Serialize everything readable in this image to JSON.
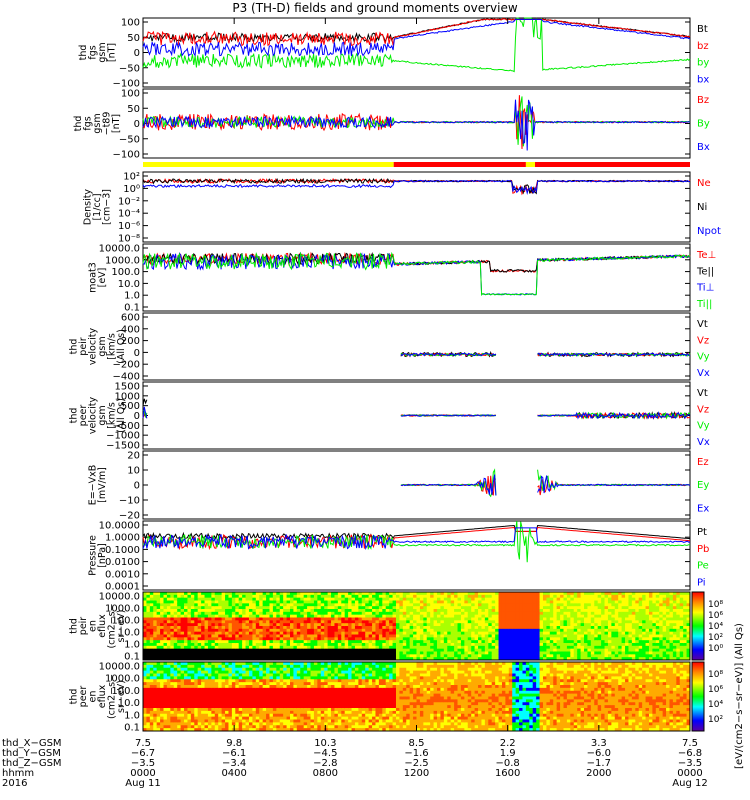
{
  "title": "P3 (TH-D) fields and ground moments overview",
  "colors": {
    "black": "#000000",
    "red": "#ff0000",
    "green": "#00ee00",
    "blue": "#0000ff",
    "yellow": "#ffff00",
    "bar_red": "#ff0000"
  },
  "chart_data": [
    {
      "type": "line",
      "id": "fgs_mag",
      "ylabel": [
        "thd",
        "fgs",
        "gsm",
        "[nT]"
      ],
      "yticks": [
        "100",
        "50",
        "0",
        "−50",
        "−100"
      ],
      "yrange": [
        -100,
        100
      ],
      "series": [
        {
          "name": "Bt",
          "color": "#000000"
        },
        {
          "name": "bz",
          "color": "#ff0000"
        },
        {
          "name": "by",
          "color": "#00ee00"
        },
        {
          "name": "bx",
          "color": "#0000ff"
        }
      ]
    },
    {
      "type": "line",
      "id": "fgs_dc",
      "ylabel": [
        "thd",
        "fgs",
        "gsm",
        "−t89",
        "[nT]"
      ],
      "yticks": [
        "100",
        "50",
        "0",
        "−50",
        "−100"
      ],
      "yrange": [
        -120,
        100
      ],
      "series": [
        {
          "name": "Bz",
          "color": "#ff0000"
        },
        {
          "name": "By",
          "color": "#00ee00"
        },
        {
          "name": "Bx",
          "color": "#0000ff"
        }
      ]
    },
    {
      "type": "line",
      "id": "density",
      "ylabel": [
        "Density",
        "[1/cc]",
        "[cm−3]"
      ],
      "yticks": [
        "10²",
        "10⁰",
        "10⁻²",
        "10⁻⁴",
        "10⁻⁶",
        "10⁻⁸"
      ],
      "yrange_log": [
        -9,
        2.5
      ],
      "series": [
        {
          "name": "Ne",
          "color": "#ff0000"
        },
        {
          "name": "Ni",
          "color": "#000000"
        },
        {
          "name": "Npot",
          "color": "#0000ff"
        }
      ]
    },
    {
      "type": "line",
      "id": "temperature",
      "ylabel": [
        "moat3",
        "[eV]"
      ],
      "yticks": [
        "10000.0",
        "1000.0",
        "100.0",
        "10.0",
        "1.0",
        "0.1"
      ],
      "yrange_log": [
        -1,
        4
      ],
      "series": [
        {
          "name": "Te⊥",
          "color": "#ff0000"
        },
        {
          "name": "Te||",
          "color": "#000000"
        },
        {
          "name": "Ti⊥",
          "color": "#0000ff"
        },
        {
          "name": "Ti||",
          "color": "#00ee00"
        }
      ]
    },
    {
      "type": "line",
      "id": "peir_velocity",
      "ylabel": [
        "thd",
        "peir",
        "velocity",
        "gsm",
        "[km/s",
        "(All Qs)"
      ],
      "yticks": [
        "600",
        "400",
        "200",
        "0",
        "−200",
        "−400"
      ],
      "yrange": [
        -400,
        600
      ],
      "series": [
        {
          "name": "Vt",
          "color": "#000000"
        },
        {
          "name": "Vz",
          "color": "#ff0000"
        },
        {
          "name": "Vy",
          "color": "#00ee00"
        },
        {
          "name": "Vx",
          "color": "#0000ff"
        }
      ]
    },
    {
      "type": "line",
      "id": "peer_velocity",
      "ylabel": [
        "thd",
        "peer",
        "velocity",
        "gsm",
        "[km/s",
        "(All Qs)"
      ],
      "yticks": [
        "1500",
        "1000",
        "500",
        "0",
        "−500",
        "−1000",
        "−1500"
      ],
      "yrange": [
        -1500,
        1500
      ],
      "series": [
        {
          "name": "Vt",
          "color": "#000000"
        },
        {
          "name": "Vz",
          "color": "#ff0000"
        },
        {
          "name": "Vy",
          "color": "#00ee00"
        },
        {
          "name": "Vx",
          "color": "#0000ff"
        }
      ]
    },
    {
      "type": "line",
      "id": "efield",
      "ylabel": [
        "E=−VxB",
        "[mV/m]"
      ],
      "yticks": [
        "20",
        "10",
        "0",
        "−10",
        "−20"
      ],
      "yrange": [
        -20,
        20
      ],
      "series": [
        {
          "name": "Ez",
          "color": "#ff0000"
        },
        {
          "name": "Ey",
          "color": "#00ee00"
        },
        {
          "name": "Ex",
          "color": "#0000ff"
        }
      ]
    },
    {
      "type": "line",
      "id": "pressure",
      "ylabel": [
        "Pressure",
        "[nPa]"
      ],
      "yticks": [
        "10.0000",
        "1.0000",
        "0.1000",
        "0.0100",
        "0.0010",
        "0.0001"
      ],
      "yrange_log": [
        -4.5,
        1.2
      ],
      "series": [
        {
          "name": "Pt",
          "color": "#000000"
        },
        {
          "name": "Pb",
          "color": "#ff0000"
        },
        {
          "name": "Pe",
          "color": "#00ee00"
        },
        {
          "name": "Pi",
          "color": "#0000ff"
        }
      ]
    },
    {
      "type": "heatmap",
      "id": "peir_spec",
      "ylabel": [
        "thd",
        "peir",
        "en",
        "eflux",
        "(cm2−s−",
        "sr−eV)"
      ],
      "yticks": [
        "10000.0",
        "1000.0",
        "100.0",
        "10.0",
        "1.0",
        "0.1"
      ],
      "colorbar_ticks": [
        "10⁸",
        "10⁶",
        "10⁴",
        "10²",
        "10⁰"
      ]
    },
    {
      "type": "heatmap",
      "id": "peer_spec",
      "ylabel": [
        "thd",
        "peer",
        "en",
        "eflux",
        "(cm2−s−",
        "sr−eV)"
      ],
      "yticks": [
        "10000.0",
        "1000.0",
        "100.0",
        "10.0",
        "1.0",
        "0.1"
      ],
      "colorbar_ticks": [
        "10⁸",
        "10⁶",
        "10⁴",
        "10²"
      ]
    }
  ],
  "colorbar_label": "[eV/(cm2−s−sr−eV)] (All Qs)",
  "xaxis": {
    "row_labels": [
      "thd_X−GSM",
      "thd_Y−GSM",
      "thd_Z−GSM",
      "hhmm",
      "2016"
    ],
    "ticks": [
      {
        "x": "7.5",
        "y": "−6.7",
        "z": "−3.5",
        "hhmm": "0000",
        "date": "Aug 11"
      },
      {
        "x": "9.8",
        "y": "−6.1",
        "z": "−3.4",
        "hhmm": "0400",
        "date": ""
      },
      {
        "x": "10.3",
        "y": "−4.5",
        "z": "−2.8",
        "hhmm": "0800",
        "date": ""
      },
      {
        "x": "8.5",
        "y": "−1.6",
        "z": "−2.5",
        "hhmm": "1200",
        "date": ""
      },
      {
        "x": "2.2",
        "y": "1.9",
        "z": "−0.8",
        "hhmm": "1600",
        "date": ""
      },
      {
        "x": "3.3",
        "y": "−6.0",
        "z": "−1.7",
        "hhmm": "2000",
        "date": ""
      },
      {
        "x": "7.5",
        "y": "−6.8",
        "z": "−3.5",
        "hhmm": "0000",
        "date": "Aug 12"
      }
    ]
  }
}
